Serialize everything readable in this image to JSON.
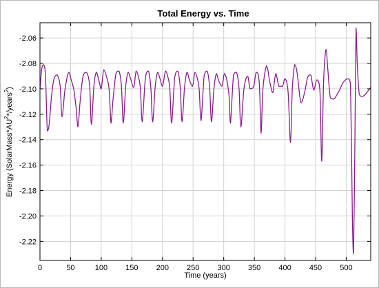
{
  "colors": {
    "series": "#8a1a8e",
    "grid": "#d2d2d2",
    "axis": "#000000",
    "background": "#ffffff"
  },
  "chart_data": {
    "type": "line",
    "title": "Total Energy vs. Time",
    "xlabel": "Time (years)",
    "ylabel_parts": [
      "Energy (SolarMass*AU",
      "2",
      "*/years",
      "2",
      ")"
    ],
    "xlim": [
      0,
      540
    ],
    "ylim": [
      -2.235,
      -2.048
    ],
    "grid": true,
    "x_ticks": [
      0,
      50,
      100,
      150,
      200,
      250,
      300,
      350,
      400,
      450,
      500
    ],
    "x_tick_labels": [
      "0",
      "50",
      "100",
      "150",
      "200",
      "250",
      "300",
      "350",
      "400",
      "450",
      "500"
    ],
    "y_ticks": [
      -2.06,
      -2.08,
      -2.1,
      -2.12,
      -2.14,
      -2.16,
      -2.18,
      -2.2,
      -2.22
    ],
    "y_tick_labels": [
      "-2.06",
      "-2.08",
      "-2.10",
      "-2.12",
      "-2.14",
      "-2.16",
      "-2.18",
      "-2.20",
      "-2.22"
    ],
    "series": [
      {
        "x": [
          0,
          3,
          6,
          9,
          12,
          15,
          19,
          23,
          28,
          33,
          36,
          41,
          47,
          51,
          55,
          59,
          62,
          65,
          68,
          71,
          76,
          81,
          84,
          88,
          92,
          96,
          100,
          104,
          109,
          113,
          116,
          119,
          124,
          129,
          133,
          136,
          140,
          144,
          148,
          153,
          157,
          161,
          164,
          167,
          172,
          177,
          181,
          184,
          188,
          192,
          196,
          200,
          205,
          209,
          212,
          215,
          220,
          225,
          229,
          232,
          236,
          240,
          244,
          249,
          253,
          257,
          260,
          263,
          268,
          273,
          277,
          280,
          284,
          288,
          292,
          297,
          301,
          305,
          309,
          311,
          316,
          321,
          325,
          328,
          333,
          339,
          343,
          349,
          353,
          358,
          361,
          364,
          370,
          375,
          380,
          385,
          390,
          396,
          400,
          405,
          409,
          412,
          416,
          420,
          426,
          432,
          437,
          442,
          447,
          452,
          457,
          460,
          463,
          467,
          470,
          474,
          480,
          488,
          495,
          503,
          507,
          510,
          512,
          514,
          516,
          518,
          521,
          525,
          530,
          535,
          540
        ],
        "y": [
          -2.1,
          -2.084,
          -2.081,
          -2.09,
          -2.133,
          -2.128,
          -2.105,
          -2.092,
          -2.089,
          -2.098,
          -2.122,
          -2.1,
          -2.087,
          -2.093,
          -2.1,
          -2.115,
          -2.13,
          -2.113,
          -2.098,
          -2.089,
          -2.087,
          -2.097,
          -2.128,
          -2.098,
          -2.087,
          -2.093,
          -2.1,
          -2.085,
          -2.091,
          -2.101,
          -2.127,
          -2.11,
          -2.088,
          -2.086,
          -2.098,
          -2.127,
          -2.098,
          -2.087,
          -2.092,
          -2.099,
          -2.086,
          -2.091,
          -2.1,
          -2.126,
          -2.092,
          -2.086,
          -2.099,
          -2.126,
          -2.099,
          -2.087,
          -2.092,
          -2.098,
          -2.086,
          -2.091,
          -2.1,
          -2.127,
          -2.091,
          -2.086,
          -2.099,
          -2.126,
          -2.099,
          -2.087,
          -2.093,
          -2.098,
          -2.087,
          -2.092,
          -2.101,
          -2.125,
          -2.09,
          -2.086,
          -2.099,
          -2.126,
          -2.1,
          -2.088,
          -2.094,
          -2.098,
          -2.088,
          -2.093,
          -2.107,
          -2.127,
          -2.089,
          -2.087,
          -2.1,
          -2.13,
          -2.1,
          -2.09,
          -2.1,
          -2.098,
          -2.087,
          -2.095,
          -2.135,
          -2.1,
          -2.082,
          -2.094,
          -2.103,
          -2.088,
          -2.098,
          -2.098,
          -2.092,
          -2.102,
          -2.142,
          -2.1,
          -2.081,
          -2.088,
          -2.111,
          -2.103,
          -2.091,
          -2.089,
          -2.101,
          -2.093,
          -2.101,
          -2.157,
          -2.095,
          -2.069,
          -2.085,
          -2.107,
          -2.108,
          -2.102,
          -2.095,
          -2.092,
          -2.097,
          -2.2,
          -2.23,
          -2.15,
          -2.052,
          -2.08,
          -2.103,
          -2.106,
          -2.105,
          -2.102,
          -2.099
        ]
      }
    ]
  }
}
